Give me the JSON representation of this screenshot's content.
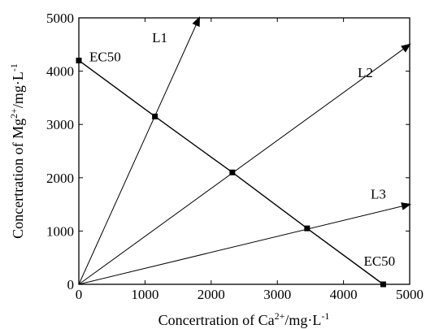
{
  "chart_data": {
    "type": "line",
    "xlabel": {
      "text": "Concertration of Ca",
      "sup1": "2+",
      "unit": "/mg·L",
      "sup2": "-1"
    },
    "ylabel": {
      "text": "Concertration of Mg",
      "sup1": "2+",
      "unit": "/mg·L",
      "sup2": "-1"
    },
    "xlim": [
      0,
      5000
    ],
    "ylim": [
      0,
      5000
    ],
    "xticks": [
      "0",
      "1000",
      "2000",
      "3000",
      "4000",
      "5000"
    ],
    "yticks": [
      "0",
      "1000",
      "2000",
      "3000",
      "4000",
      "5000"
    ],
    "grid": false,
    "rays": [
      {
        "name": "L1",
        "from": [
          0,
          0
        ],
        "to": [
          1820,
          5000
        ]
      },
      {
        "name": "L2",
        "from": [
          0,
          0
        ],
        "to": [
          5000,
          4500
        ]
      },
      {
        "name": "L3",
        "from": [
          0,
          0
        ],
        "to": [
          5000,
          1500
        ]
      }
    ],
    "ec50_line": [
      [
        0,
        4200
      ],
      [
        1150,
        3150
      ],
      [
        2320,
        2100
      ],
      [
        3450,
        1050
      ],
      [
        4600,
        0
      ]
    ],
    "markers": [
      {
        "x": 0,
        "y": 4200,
        "label": "EC50"
      },
      {
        "x": 1150,
        "y": 3150,
        "label": ""
      },
      {
        "x": 2320,
        "y": 2100,
        "label": ""
      },
      {
        "x": 3450,
        "y": 1050,
        "label": ""
      },
      {
        "x": 4600,
        "y": 0,
        "label": "EC50"
      }
    ],
    "colors": {
      "line": "#000000",
      "marker": "#000000"
    }
  }
}
